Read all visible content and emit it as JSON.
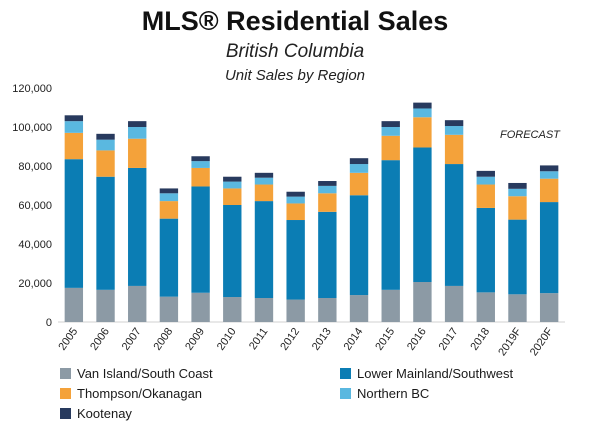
{
  "chart_data": {
    "type": "bar",
    "stacked": true,
    "title": "MLS® Residential Sales",
    "subtitle": "British Columbia",
    "subtitle2": "Unit Sales by Region",
    "annotation": "FORECAST",
    "categories": [
      "2005",
      "2006",
      "2007",
      "2008",
      "2009",
      "2010",
      "2011",
      "2012",
      "2013",
      "2014",
      "2015",
      "2016",
      "2017",
      "2018",
      "2019F",
      "2020F"
    ],
    "ylim": [
      0,
      120000
    ],
    "yticks": [
      0,
      20000,
      40000,
      60000,
      80000,
      100000,
      120000
    ],
    "ytick_labels": [
      "0",
      "20,000",
      "40,000",
      "60,000",
      "80,000",
      "100,000",
      "120,000"
    ],
    "grid": false,
    "legend_position": "bottom",
    "series": [
      {
        "name": "Van Island/South Coast",
        "color": "#8c9aa5",
        "values": [
          17500,
          16500,
          18500,
          13000,
          15000,
          12800,
          12300,
          11500,
          12300,
          13800,
          16500,
          20500,
          18500,
          15200,
          14200,
          14800
        ]
      },
      {
        "name": "Lower Mainland/Southwest",
        "color": "#0b7db4",
        "values": [
          66000,
          58000,
          60500,
          40000,
          54500,
          47200,
          49700,
          40800,
          44200,
          51200,
          66500,
          69000,
          62500,
          43300,
          38300,
          46700
        ]
      },
      {
        "name": "Thompson/Okanagan",
        "color": "#f4a23a",
        "values": [
          13500,
          13500,
          15000,
          9000,
          9500,
          8500,
          8500,
          8500,
          9500,
          11500,
          12500,
          15500,
          15000,
          12000,
          12000,
          12000
        ]
      },
      {
        "name": "Northern BC",
        "color": "#5ab8e0",
        "values": [
          6000,
          5500,
          6000,
          4000,
          3500,
          3500,
          3500,
          3500,
          3800,
          4500,
          4500,
          4500,
          4500,
          4000,
          3800,
          3800
        ]
      },
      {
        "name": "Kootenay",
        "color": "#283a5e",
        "values": [
          3000,
          3000,
          3000,
          2500,
          2500,
          2500,
          2500,
          2500,
          2500,
          3000,
          3000,
          3000,
          3000,
          3000,
          3000,
          3000
        ]
      }
    ]
  }
}
